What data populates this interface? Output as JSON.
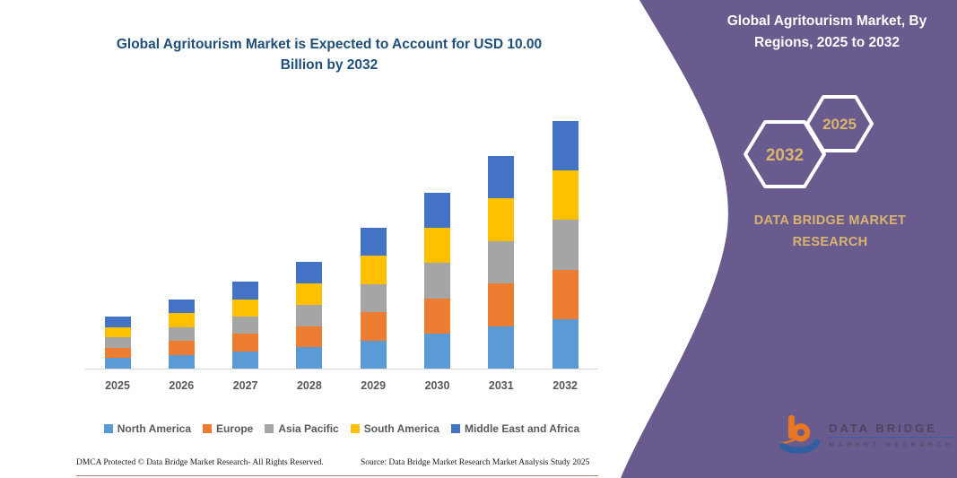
{
  "header": {
    "title": "Global Agritourism Market is Expected to Account for USD 10.00 Billion by 2032"
  },
  "chart_data": {
    "type": "bar",
    "stacked": true,
    "title": "Global Agritourism Market is Expected to Account for USD 10.00 Billion by 2032",
    "unit": "USD Billion",
    "categories": [
      "2025",
      "2026",
      "2027",
      "2028",
      "2029",
      "2030",
      "2031",
      "2032"
    ],
    "series": [
      {
        "name": "North America",
        "color": "#5B9BD5",
        "values": [
          0.42,
          0.56,
          0.7,
          0.86,
          1.14,
          1.42,
          1.72,
          2.0
        ]
      },
      {
        "name": "Europe",
        "color": "#ED7D31",
        "values": [
          0.42,
          0.56,
          0.7,
          0.86,
          1.14,
          1.42,
          1.72,
          2.0
        ]
      },
      {
        "name": "Asia Pacific",
        "color": "#A5A5A5",
        "values": [
          0.42,
          0.56,
          0.7,
          0.86,
          1.14,
          1.42,
          1.72,
          2.0
        ]
      },
      {
        "name": "South America",
        "color": "#FFC000",
        "values": [
          0.42,
          0.56,
          0.7,
          0.86,
          1.14,
          1.42,
          1.72,
          2.0
        ]
      },
      {
        "name": "Middle East and Africa",
        "color": "#4472C4",
        "values": [
          0.42,
          0.56,
          0.7,
          0.86,
          1.14,
          1.42,
          1.72,
          2.0
        ]
      }
    ],
    "totals": [
      2.1,
      2.8,
      3.5,
      4.3,
      5.7,
      7.1,
      8.6,
      10.0
    ],
    "ylim": [
      0,
      10.2
    ],
    "grid": false,
    "y_axis_visible": false,
    "legend_position": "bottom"
  },
  "sidebar": {
    "title": "Global Agritourism Market, By Regions, 2025 to 2032",
    "badge_back_year": "2032",
    "badge_front_year": "2025",
    "brand": "DATA BRIDGE MARKET RESEARCH",
    "colors": {
      "panel": "#6a5b8e",
      "gold": "#d9b46e",
      "white": "#ffffff"
    }
  },
  "logo": {
    "line1": "DATA BRIDGE",
    "line2": "MARKET RESEARCH"
  },
  "footer": {
    "left": "DMCA Protected © Data Bridge Market Research-  All Rights Reserved.",
    "right": "Source: Data Bridge Market Research  Market Analysis Study 2025"
  }
}
